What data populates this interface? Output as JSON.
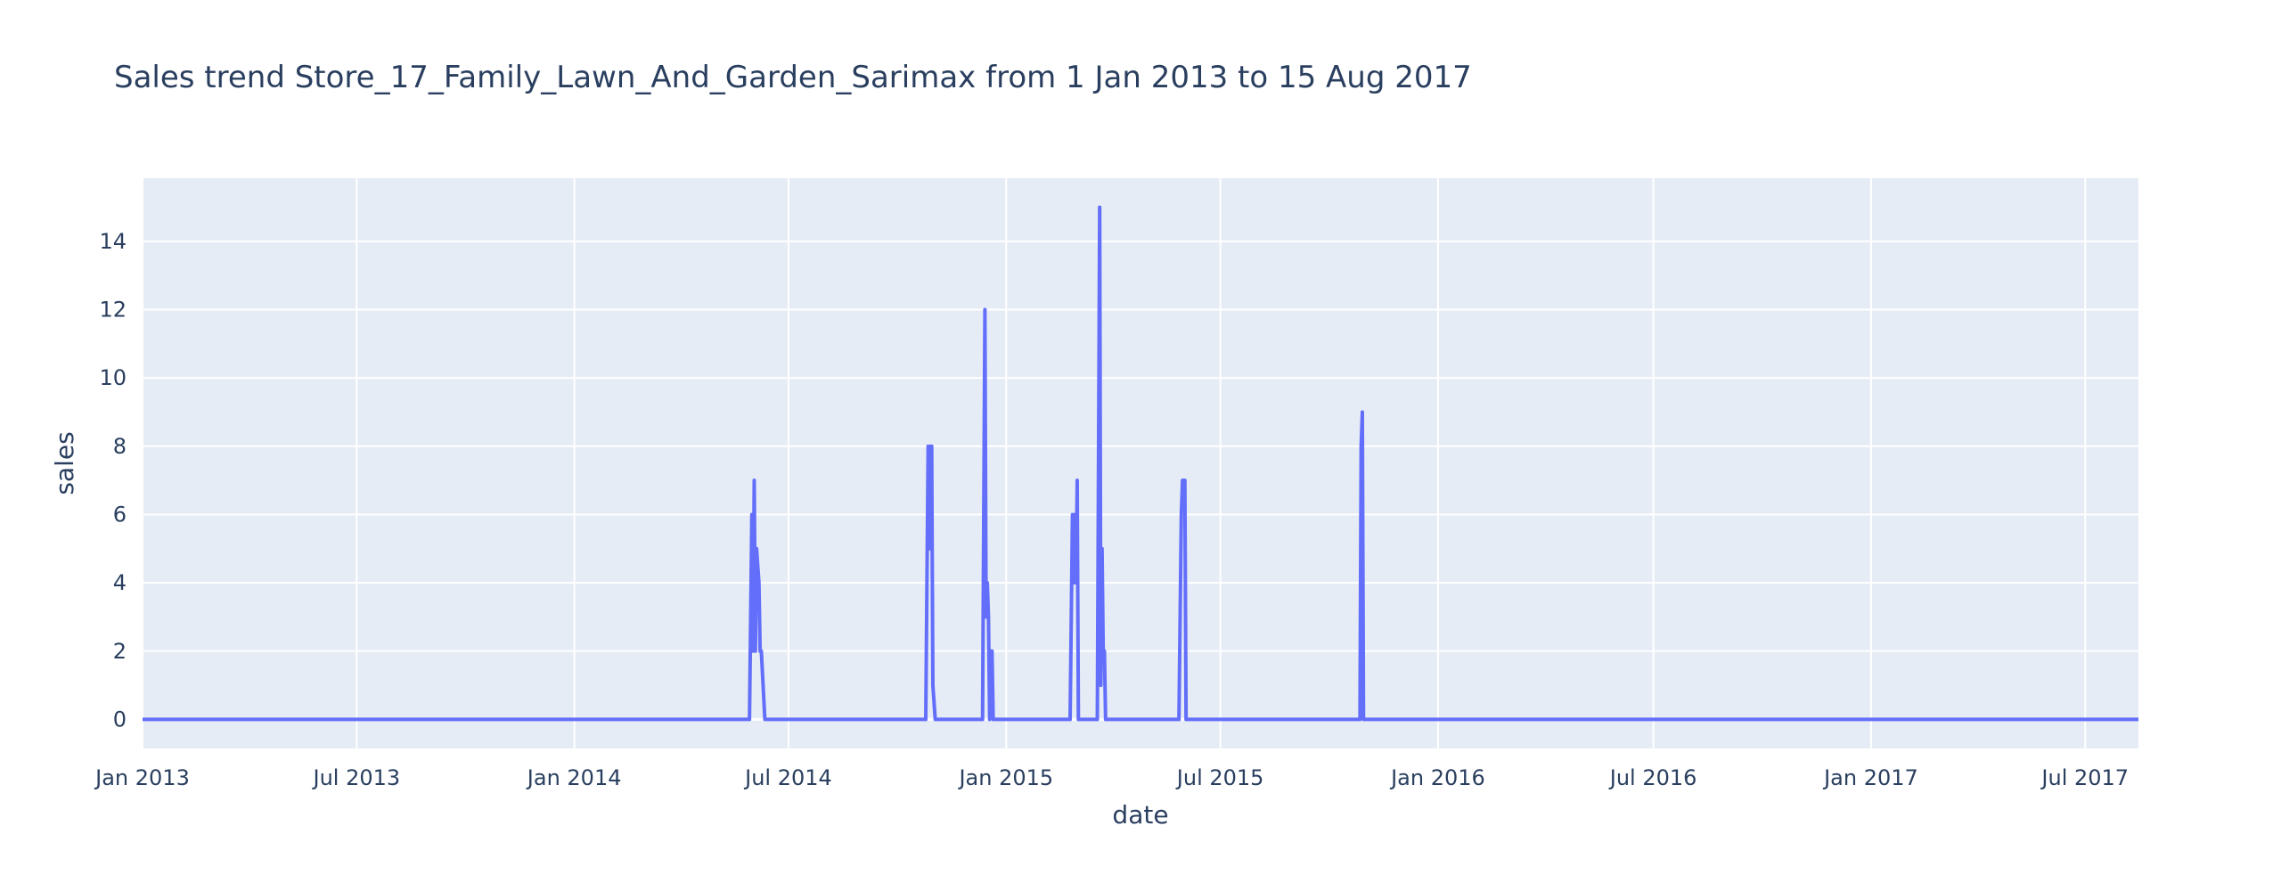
{
  "chart_data": {
    "type": "line",
    "title": "Sales trend Store_17_Family_Lawn_And_Garden_Sarimax from  1 Jan 2013 to 15 Aug 2017",
    "xlabel": "date",
    "ylabel": "sales",
    "xlim": [
      "2013-01-01",
      "2017-08-15"
    ],
    "ylim": [
      -0.85,
      15.85
    ],
    "x_ticks": [
      {
        "date": "2013-01-01",
        "label": "Jan 2013"
      },
      {
        "date": "2013-07-01",
        "label": "Jul 2013"
      },
      {
        "date": "2014-01-01",
        "label": "Jan 2014"
      },
      {
        "date": "2014-07-01",
        "label": "Jul 2014"
      },
      {
        "date": "2015-01-01",
        "label": "Jan 2015"
      },
      {
        "date": "2015-07-01",
        "label": "Jul 2015"
      },
      {
        "date": "2016-01-01",
        "label": "Jan 2016"
      },
      {
        "date": "2016-07-01",
        "label": "Jul 2016"
      },
      {
        "date": "2017-01-01",
        "label": "Jan 2017"
      },
      {
        "date": "2017-07-01",
        "label": "Jul 2017"
      }
    ],
    "y_ticks": [
      0,
      2,
      4,
      6,
      8,
      10,
      12,
      14
    ],
    "grid": true,
    "legend": "none",
    "colors": {
      "line": "#636efa",
      "plot_bg": "#e5ecf6",
      "grid": "#ffffff",
      "text": "#2a3f5f"
    },
    "series": [
      {
        "points": [
          [
            "2013-01-01",
            0
          ],
          [
            "2014-05-29",
            0
          ],
          [
            "2014-05-31",
            6
          ],
          [
            "2014-06-01",
            2
          ],
          [
            "2014-06-02",
            7
          ],
          [
            "2014-06-03",
            2
          ],
          [
            "2014-06-04",
            5
          ],
          [
            "2014-06-06",
            4
          ],
          [
            "2014-06-07",
            2
          ],
          [
            "2014-06-08",
            2
          ],
          [
            "2014-06-11",
            0
          ],
          [
            "2014-10-25",
            0
          ],
          [
            "2014-10-27",
            8
          ],
          [
            "2014-10-28",
            5
          ],
          [
            "2014-10-29",
            8
          ],
          [
            "2014-10-30",
            8
          ],
          [
            "2014-10-31",
            1
          ],
          [
            "2014-11-02",
            0
          ],
          [
            "2014-12-12",
            0
          ],
          [
            "2014-12-14",
            12
          ],
          [
            "2014-12-15",
            3
          ],
          [
            "2014-12-16",
            4
          ],
          [
            "2014-12-17",
            3
          ],
          [
            "2014-12-18",
            0
          ],
          [
            "2014-12-19",
            2
          ],
          [
            "2014-12-20",
            2
          ],
          [
            "2014-12-21",
            0
          ],
          [
            "2015-02-24",
            0
          ],
          [
            "2015-02-26",
            6
          ],
          [
            "2015-02-27",
            4
          ],
          [
            "2015-02-28",
            6
          ],
          [
            "2015-03-01",
            4
          ],
          [
            "2015-03-02",
            7
          ],
          [
            "2015-03-03",
            0
          ],
          [
            "2015-03-19",
            0
          ],
          [
            "2015-03-21",
            15
          ],
          [
            "2015-03-22",
            1
          ],
          [
            "2015-03-23",
            5
          ],
          [
            "2015-03-24",
            2
          ],
          [
            "2015-03-25",
            2
          ],
          [
            "2015-03-26",
            0
          ],
          [
            "2015-05-27",
            0
          ],
          [
            "2015-05-29",
            6
          ],
          [
            "2015-05-30",
            7
          ],
          [
            "2015-06-01",
            7
          ],
          [
            "2015-06-02",
            0
          ],
          [
            "2015-10-27",
            0
          ],
          [
            "2015-10-28",
            8
          ],
          [
            "2015-10-29",
            9
          ],
          [
            "2015-10-30",
            0
          ],
          [
            "2017-08-15",
            0
          ]
        ]
      }
    ]
  }
}
